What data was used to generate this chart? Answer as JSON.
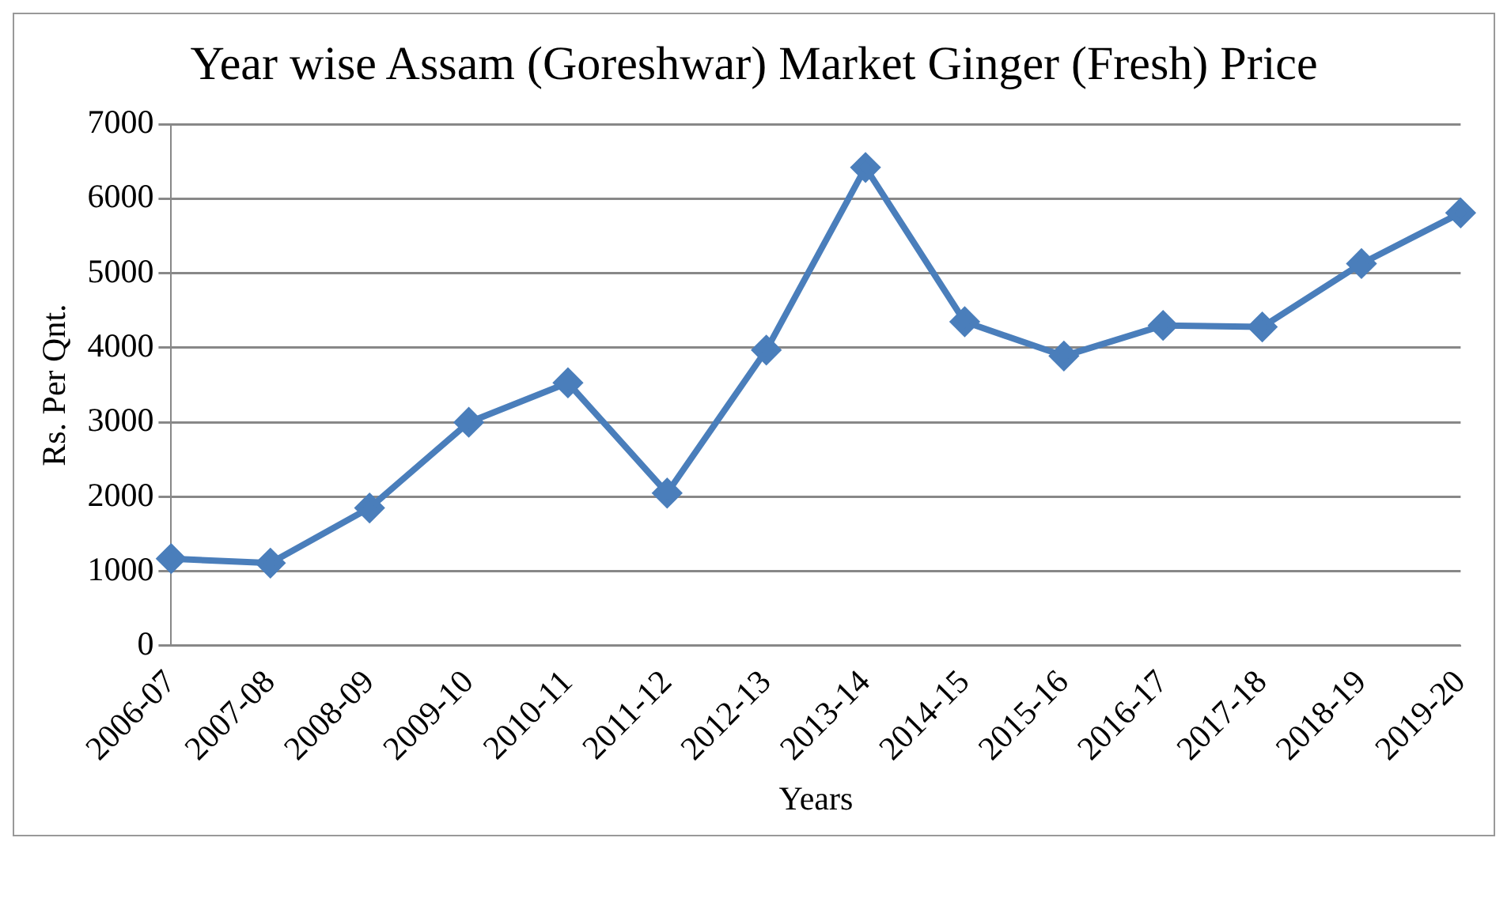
{
  "chart_data": {
    "type": "line",
    "title": "Year wise Assam (Goreshwar) Market Ginger (Fresh) Price",
    "xlabel": "Years",
    "ylabel": "Rs. Per Qnt.",
    "categories": [
      "2006-07",
      "2007-08",
      "2008-09",
      "2009-10",
      "2010-11",
      "2011-12",
      "2012-13",
      "2013-14",
      "2014-15",
      "2015-16",
      "2016-17",
      "2017-18",
      "2018-19",
      "2019-20"
    ],
    "series": [
      {
        "color": "#4a7ebb",
        "values": [
          1170,
          1110,
          1850,
          3000,
          3530,
          2050,
          3970,
          6420,
          4350,
          3890,
          4300,
          4280,
          5130,
          5810
        ]
      }
    ],
    "ylim": [
      0,
      7000
    ],
    "yticks": [
      0,
      1000,
      2000,
      3000,
      4000,
      5000,
      6000,
      7000
    ],
    "grid": "y",
    "legend": false,
    "marker": "diamond",
    "line_style": "solid"
  }
}
